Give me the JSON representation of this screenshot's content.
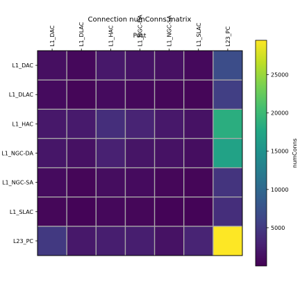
{
  "chart_data": {
    "type": "heatmap",
    "title": "Connection numConns matrix",
    "xlabel": "Post",
    "ylabel": "",
    "x_categories": [
      "L1_DAC",
      "L1_DLAC",
      "L1_HAC",
      "L1_NGC-DA",
      "L1_NGC-SA",
      "L1_SLAC",
      "L23_PC"
    ],
    "y_categories": [
      "L1_DAC",
      "L1_DLAC",
      "L1_HAC",
      "L1_NGC-DA",
      "L1_NGC-SA",
      "L1_SLAC",
      "L23_PC"
    ],
    "values": [
      [
        1200,
        600,
        2000,
        1600,
        1300,
        700,
        7000
      ],
      [
        900,
        400,
        900,
        600,
        500,
        400,
        5500
      ],
      [
        2000,
        2200,
        4000,
        3000,
        2000,
        1500,
        18500
      ],
      [
        1800,
        1400,
        2800,
        1700,
        1500,
        1100,
        17000
      ],
      [
        900,
        400,
        1000,
        900,
        500,
        400,
        4500
      ],
      [
        500,
        300,
        600,
        500,
        300,
        300,
        4000
      ],
      [
        5000,
        2000,
        2500,
        2500,
        1500,
        3000,
        29500
      ]
    ],
    "colorbar": {
      "label": "numConns",
      "min": 0,
      "max": 29500,
      "ticks": [
        5000,
        10000,
        15000,
        20000,
        25000
      ]
    },
    "grid": true,
    "colormap": "viridis"
  }
}
